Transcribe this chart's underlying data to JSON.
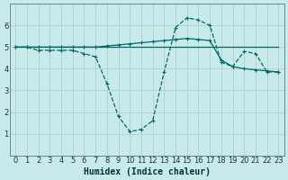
{
  "xlabel": "Humidex (Indice chaleur)",
  "background_color": "#c8eaea",
  "grid_color": "#b0d0d0",
  "line_color": "#006868",
  "xlim": [
    -0.5,
    23.5
  ],
  "ylim": [
    0,
    7
  ],
  "xticks": [
    0,
    1,
    2,
    3,
    4,
    5,
    6,
    7,
    8,
    9,
    10,
    11,
    12,
    13,
    14,
    15,
    16,
    17,
    18,
    19,
    20,
    21,
    22,
    23
  ],
  "yticks": [
    1,
    2,
    3,
    4,
    5,
    6
  ],
  "curve1_x": [
    0,
    1,
    2,
    3,
    4,
    5,
    6,
    7,
    8,
    9,
    10,
    11,
    12,
    13,
    14,
    15,
    16,
    17,
    18,
    19,
    20,
    21,
    22,
    23
  ],
  "curve1_y": [
    5.0,
    5.0,
    4.85,
    4.85,
    4.85,
    4.85,
    4.7,
    4.55,
    3.3,
    1.8,
    1.1,
    1.2,
    1.6,
    3.85,
    5.9,
    6.35,
    6.25,
    6.0,
    4.3,
    4.1,
    4.8,
    4.7,
    3.85,
    3.85
  ],
  "curve2_x": [
    0,
    1,
    2,
    3,
    4,
    5,
    6,
    7,
    8,
    9,
    10,
    11,
    12,
    13,
    14,
    15,
    16,
    17,
    18,
    19,
    20,
    21,
    22,
    23
  ],
  "curve2_y": [
    5.0,
    5.0,
    5.0,
    5.0,
    5.0,
    5.0,
    5.0,
    5.0,
    5.0,
    5.0,
    5.0,
    5.0,
    5.0,
    5.0,
    5.0,
    5.0,
    5.0,
    5.0,
    5.0,
    5.0,
    5.0,
    5.0,
    5.0,
    5.0
  ],
  "curve3_x": [
    0,
    1,
    2,
    3,
    4,
    5,
    6,
    7,
    8,
    9,
    10,
    11,
    12,
    13,
    14,
    15,
    16,
    17,
    18,
    19,
    20,
    21,
    22,
    23
  ],
  "curve3_y": [
    5.0,
    5.0,
    5.0,
    5.0,
    5.0,
    5.0,
    5.0,
    5.0,
    5.05,
    5.1,
    5.15,
    5.2,
    5.25,
    5.3,
    5.35,
    5.4,
    5.35,
    5.3,
    4.4,
    4.1,
    4.0,
    3.95,
    3.9,
    3.85
  ],
  "xlabel_fontsize": 7,
  "tick_fontsize": 6
}
